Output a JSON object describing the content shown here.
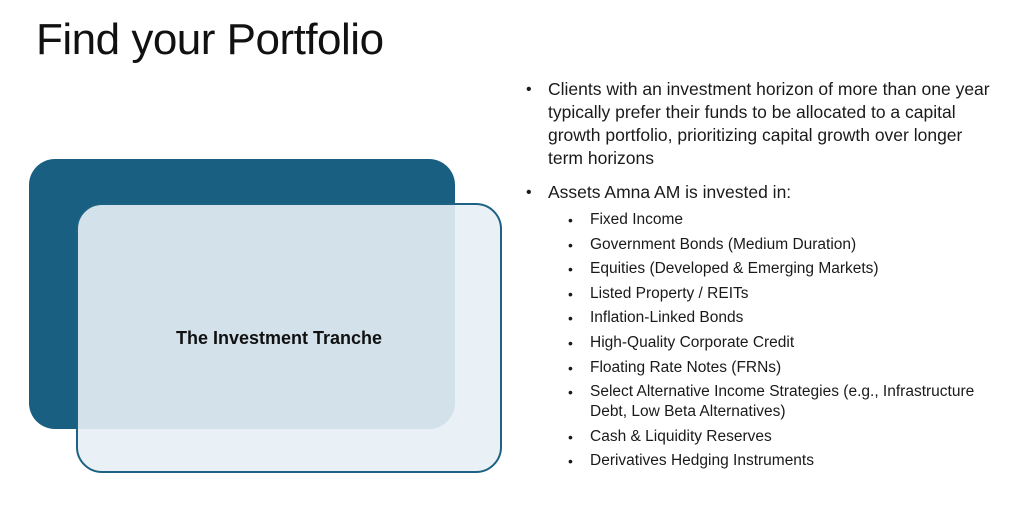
{
  "slide": {
    "title": "Find your Portfolio",
    "graphic": {
      "label": "The Investment Tranche",
      "colors": {
        "dark_box": "#185f82",
        "light_box": "#e8f0f5",
        "outline": "#1d6283"
      }
    },
    "bullets": [
      {
        "text": "Clients with an investment horizon of more than one year typically prefer their funds to be allocated to a capital growth portfolio, prioritizing capital growth over longer term horizons"
      },
      {
        "text": "Assets Amna AM is invested in:"
      }
    ],
    "assets": [
      "Fixed Income",
      "Government Bonds (Medium Duration)",
      "Equities (Developed & Emerging Markets)",
      "Listed Property / REITs",
      "Inflation-Linked Bonds",
      "High-Quality Corporate Credit",
      "Floating Rate Notes (FRNs)",
      "Select Alternative Income Strategies (e.g., Infrastructure Debt, Low Beta Alternatives)",
      "Cash & Liquidity Reserves",
      "Derivatives Hedging Instruments"
    ]
  }
}
